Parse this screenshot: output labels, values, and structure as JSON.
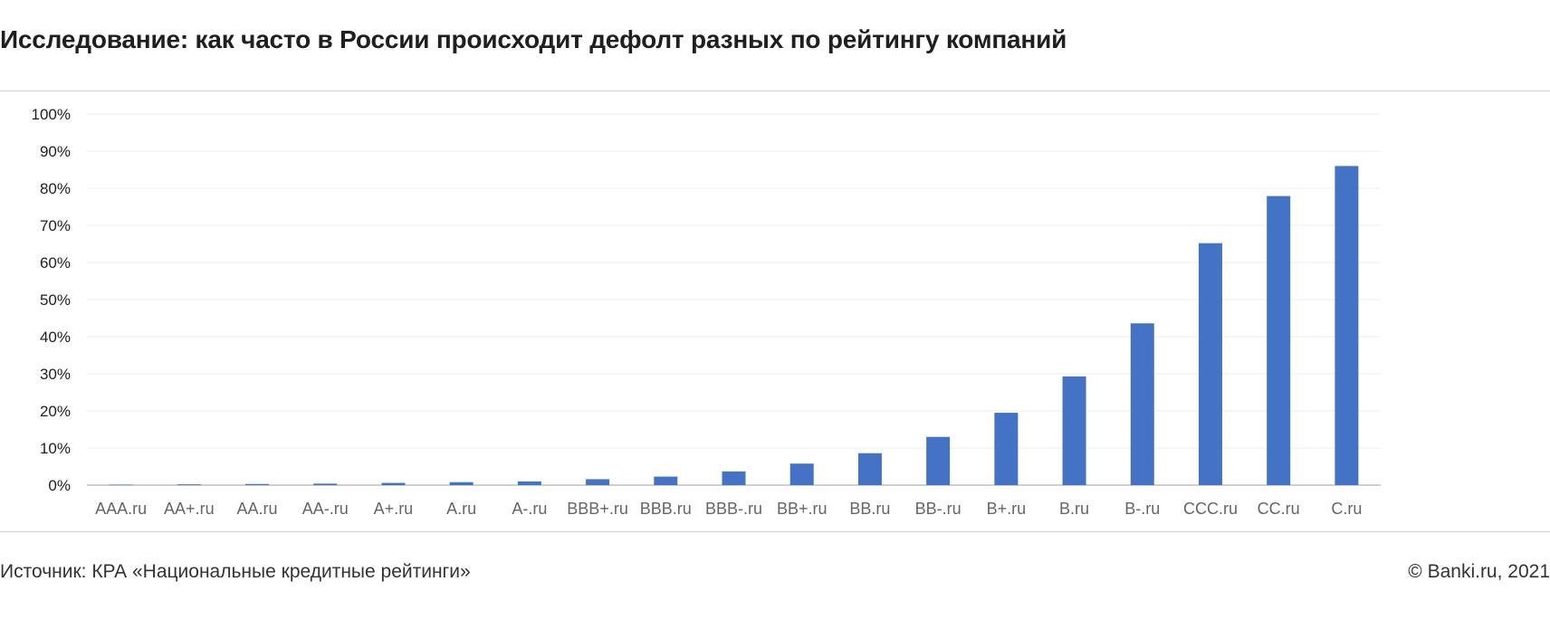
{
  "title": "Исследование: как часто в России происходит дефолт разных по рейтингу компаний",
  "footer": {
    "source": "Источник: КРА «Национальные кредитные рейтинги»",
    "copyright": "© Banki.ru, 2021"
  },
  "chart_data": {
    "type": "bar",
    "categories": [
      "AAA.ru",
      "AA+.ru",
      "AA.ru",
      "AA-.ru",
      "A+.ru",
      "A.ru",
      "A-.ru",
      "BBB+.ru",
      "BBB.ru",
      "BBB-.ru",
      "BB+.ru",
      "BB.ru",
      "BB-.ru",
      "B+.ru",
      "B.ru",
      "B-.ru",
      "CCC.ru",
      "CC.ru",
      "C.ru"
    ],
    "values": [
      0.1,
      0.2,
      0.3,
      0.4,
      0.6,
      0.8,
      1.0,
      1.6,
      2.3,
      3.7,
      5.8,
      8.6,
      13.0,
      19.5,
      29.3,
      43.6,
      65.2,
      77.9,
      86.0
    ],
    "title": "",
    "xlabel": "",
    "ylabel": "",
    "ylim": [
      0,
      100
    ],
    "yticks": [
      "0%",
      "10%",
      "20%",
      "30%",
      "40%",
      "50%",
      "60%",
      "70%",
      "80%",
      "90%",
      "100%"
    ],
    "grid": true,
    "legend": "none",
    "bar_color": "#4472c4",
    "grid_color": "#ececec",
    "axis_color": "#d0d0d0"
  }
}
